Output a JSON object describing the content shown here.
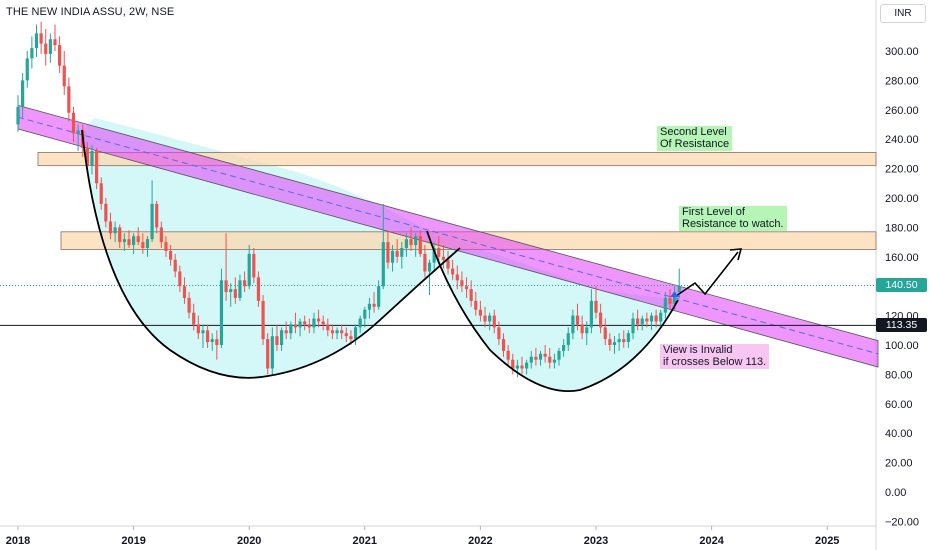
{
  "header": {
    "symbol_line": "THE NEW INDIA ASSU, 2W, NSE",
    "currency": "INR"
  },
  "price_tags": {
    "current_price": "140.50",
    "support_price": "113.35"
  },
  "annotations": {
    "second_resistance": [
      "Second Level",
      "Of Resistance"
    ],
    "first_resistance": [
      "First Level of",
      "Resistance to watch."
    ],
    "invalid_view": [
      "View is Invalid",
      "if crosses Below 113."
    ]
  },
  "colors": {
    "up_candle": "#26a69a",
    "down_candle": "#ef5350",
    "resistance_zone": "#fbd9b0",
    "channel": "#e040fb",
    "cup_fill": "#ccf7f7",
    "current_price_tag": "#26a69a",
    "support_price_tag": "#131722"
  },
  "chart_data": {
    "type": "candlestick",
    "y_axis": {
      "range": [
        -25,
        320
      ],
      "ticks": [
        "300.00",
        "280.00",
        "260.00",
        "240.00",
        "220.00",
        "200.00",
        "180.00",
        "160.00",
        "120.00",
        "100.00",
        "80.00",
        "60.00",
        "40.00",
        "20.00",
        "0.00",
        "−20.00"
      ]
    },
    "x_axis": {
      "ticks": [
        "2018",
        "2019",
        "2020",
        "2021",
        "2022",
        "2023",
        "2024",
        "2025"
      ]
    },
    "resistance_zones": [
      {
        "low": 222,
        "high": 231
      },
      {
        "low": 165,
        "high": 177
      }
    ],
    "support_level": 113.35,
    "current_price": 140.5,
    "trend_channel": {
      "start": {
        "date": "2018-01",
        "upper": 263,
        "lower": 247
      },
      "end": {
        "date": "2025-04",
        "upper": 103,
        "lower": 85
      }
    },
    "candles": [
      [
        2018.0,
        250,
        270,
        245,
        262
      ],
      [
        2018.04,
        262,
        285,
        255,
        280
      ],
      [
        2018.08,
        280,
        300,
        275,
        295
      ],
      [
        2018.12,
        295,
        310,
        288,
        302
      ],
      [
        2018.16,
        302,
        318,
        296,
        312
      ],
      [
        2018.2,
        312,
        320,
        298,
        305
      ],
      [
        2018.24,
        305,
        315,
        290,
        298
      ],
      [
        2018.28,
        298,
        312,
        292,
        308
      ],
      [
        2018.32,
        308,
        318,
        300,
        304
      ],
      [
        2018.36,
        304,
        310,
        285,
        290
      ],
      [
        2018.4,
        290,
        300,
        270,
        276
      ],
      [
        2018.44,
        276,
        282,
        252,
        258
      ],
      [
        2018.48,
        258,
        262,
        238,
        244
      ],
      [
        2018.52,
        244,
        250,
        232,
        246
      ],
      [
        2018.56,
        246,
        250,
        228,
        234
      ],
      [
        2018.6,
        234,
        238,
        218,
        222
      ],
      [
        2018.64,
        222,
        236,
        216,
        232
      ],
      [
        2018.68,
        232,
        234,
        206,
        210
      ],
      [
        2018.72,
        210,
        214,
        192,
        196
      ],
      [
        2018.76,
        196,
        200,
        180,
        184
      ],
      [
        2018.8,
        184,
        190,
        172,
        176
      ],
      [
        2018.84,
        176,
        184,
        170,
        180
      ],
      [
        2018.88,
        180,
        182,
        166,
        170
      ],
      [
        2018.92,
        170,
        176,
        164,
        172
      ],
      [
        2018.96,
        172,
        178,
        166,
        168
      ],
      [
        2019.0,
        168,
        176,
        162,
        174
      ],
      [
        2019.04,
        174,
        180,
        168,
        170
      ],
      [
        2019.08,
        170,
        176,
        162,
        166
      ],
      [
        2019.12,
        166,
        174,
        160,
        172
      ],
      [
        2019.16,
        172,
        212,
        170,
        196
      ],
      [
        2019.2,
        196,
        198,
        176,
        180
      ],
      [
        2019.24,
        180,
        184,
        166,
        170
      ],
      [
        2019.28,
        170,
        174,
        160,
        164
      ],
      [
        2019.32,
        164,
        168,
        154,
        158
      ],
      [
        2019.36,
        158,
        162,
        146,
        150
      ],
      [
        2019.4,
        150,
        154,
        136,
        140
      ],
      [
        2019.44,
        140,
        146,
        128,
        132
      ],
      [
        2019.48,
        132,
        136,
        118,
        122
      ],
      [
        2019.52,
        122,
        128,
        110,
        114
      ],
      [
        2019.56,
        114,
        120,
        104,
        108
      ],
      [
        2019.6,
        108,
        114,
        98,
        110
      ],
      [
        2019.64,
        110,
        114,
        98,
        102
      ],
      [
        2019.68,
        102,
        108,
        96,
        104
      ],
      [
        2019.72,
        104,
        110,
        90,
        100
      ],
      [
        2019.76,
        100,
        152,
        98,
        144
      ],
      [
        2019.8,
        144,
        176,
        130,
        136
      ],
      [
        2019.84,
        136,
        142,
        126,
        138
      ],
      [
        2019.88,
        138,
        146,
        128,
        132
      ],
      [
        2019.92,
        132,
        148,
        130,
        144
      ],
      [
        2019.96,
        144,
        150,
        136,
        140
      ],
      [
        2020.0,
        140,
        168,
        138,
        162
      ],
      [
        2020.04,
        162,
        166,
        142,
        146
      ],
      [
        2020.08,
        146,
        150,
        126,
        130
      ],
      [
        2020.12,
        130,
        134,
        100,
        104
      ],
      [
        2020.16,
        104,
        108,
        80,
        84
      ],
      [
        2020.2,
        84,
        112,
        80,
        106
      ],
      [
        2020.24,
        106,
        114,
        96,
        100
      ],
      [
        2020.28,
        100,
        112,
        96,
        110
      ],
      [
        2020.32,
        110,
        116,
        104,
        108
      ],
      [
        2020.36,
        108,
        116,
        104,
        114
      ],
      [
        2020.4,
        114,
        122,
        108,
        112
      ],
      [
        2020.44,
        112,
        118,
        106,
        116
      ],
      [
        2020.48,
        116,
        120,
        110,
        114
      ],
      [
        2020.52,
        114,
        118,
        108,
        112
      ],
      [
        2020.56,
        112,
        122,
        108,
        118
      ],
      [
        2020.6,
        118,
        124,
        112,
        116
      ],
      [
        2020.64,
        116,
        120,
        110,
        114
      ],
      [
        2020.68,
        114,
        118,
        106,
        110
      ],
      [
        2020.72,
        110,
        114,
        104,
        108
      ],
      [
        2020.76,
        108,
        112,
        104,
        110
      ],
      [
        2020.8,
        110,
        114,
        104,
        108
      ],
      [
        2020.84,
        108,
        112,
        102,
        106
      ],
      [
        2020.88,
        106,
        110,
        100,
        104
      ],
      [
        2020.92,
        104,
        114,
        100,
        112
      ],
      [
        2020.96,
        112,
        120,
        108,
        118
      ],
      [
        2021.0,
        118,
        126,
        112,
        124
      ],
      [
        2021.04,
        124,
        132,
        118,
        128
      ],
      [
        2021.08,
        128,
        136,
        122,
        126
      ],
      [
        2021.12,
        126,
        144,
        124,
        140
      ],
      [
        2021.16,
        140,
        196,
        138,
        170
      ],
      [
        2021.2,
        170,
        178,
        152,
        156
      ],
      [
        2021.24,
        156,
        168,
        150,
        164
      ],
      [
        2021.28,
        164,
        172,
        156,
        160
      ],
      [
        2021.32,
        160,
        170,
        152,
        166
      ],
      [
        2021.36,
        166,
        176,
        160,
        172
      ],
      [
        2021.4,
        172,
        180,
        164,
        168
      ],
      [
        2021.44,
        168,
        176,
        160,
        174
      ],
      [
        2021.48,
        174,
        178,
        160,
        162
      ],
      [
        2021.52,
        162,
        168,
        146,
        150
      ],
      [
        2021.56,
        150,
        158,
        134,
        156
      ],
      [
        2021.6,
        156,
        170,
        150,
        166
      ],
      [
        2021.64,
        166,
        174,
        156,
        160
      ],
      [
        2021.68,
        160,
        168,
        152,
        158
      ],
      [
        2021.72,
        158,
        164,
        148,
        152
      ],
      [
        2021.76,
        152,
        158,
        144,
        148
      ],
      [
        2021.8,
        148,
        154,
        138,
        144
      ],
      [
        2021.84,
        144,
        150,
        136,
        140
      ],
      [
        2021.88,
        140,
        146,
        132,
        138
      ],
      [
        2021.92,
        138,
        144,
        126,
        130
      ],
      [
        2021.96,
        130,
        136,
        120,
        124
      ],
      [
        2022.0,
        124,
        130,
        116,
        120
      ],
      [
        2022.04,
        120,
        126,
        112,
        116
      ],
      [
        2022.08,
        116,
        122,
        110,
        120
      ],
      [
        2022.12,
        120,
        124,
        108,
        112
      ],
      [
        2022.16,
        112,
        116,
        100,
        104
      ],
      [
        2022.2,
        104,
        108,
        92,
        96
      ],
      [
        2022.24,
        96,
        100,
        86,
        90
      ],
      [
        2022.28,
        90,
        94,
        80,
        84
      ],
      [
        2022.32,
        84,
        90,
        78,
        86
      ],
      [
        2022.36,
        86,
        92,
        80,
        84
      ],
      [
        2022.4,
        84,
        90,
        80,
        88
      ],
      [
        2022.44,
        88,
        96,
        84,
        92
      ],
      [
        2022.48,
        92,
        98,
        86,
        90
      ],
      [
        2022.52,
        90,
        96,
        86,
        94
      ],
      [
        2022.56,
        94,
        100,
        88,
        92
      ],
      [
        2022.6,
        92,
        98,
        84,
        88
      ],
      [
        2022.64,
        88,
        94,
        84,
        90
      ],
      [
        2022.68,
        90,
        98,
        86,
        96
      ],
      [
        2022.72,
        96,
        104,
        92,
        100
      ],
      [
        2022.76,
        100,
        112,
        96,
        108
      ],
      [
        2022.8,
        108,
        124,
        104,
        120
      ],
      [
        2022.84,
        120,
        128,
        110,
        114
      ],
      [
        2022.88,
        114,
        120,
        104,
        108
      ],
      [
        2022.92,
        108,
        116,
        100,
        112
      ],
      [
        2022.96,
        112,
        138,
        108,
        130
      ],
      [
        2023.0,
        130,
        140,
        118,
        122
      ],
      [
        2023.04,
        122,
        128,
        108,
        112
      ],
      [
        2023.08,
        112,
        118,
        100,
        104
      ],
      [
        2023.12,
        104,
        108,
        96,
        100
      ],
      [
        2023.16,
        100,
        106,
        94,
        102
      ],
      [
        2023.2,
        102,
        108,
        96,
        104
      ],
      [
        2023.24,
        104,
        110,
        98,
        102
      ],
      [
        2023.28,
        102,
        110,
        98,
        108
      ],
      [
        2023.32,
        108,
        122,
        104,
        118
      ],
      [
        2023.36,
        118,
        124,
        110,
        114
      ],
      [
        2023.4,
        114,
        120,
        110,
        118
      ],
      [
        2023.44,
        118,
        122,
        112,
        116
      ],
      [
        2023.48,
        116,
        122,
        110,
        120
      ],
      [
        2023.52,
        120,
        124,
        112,
        116
      ],
      [
        2023.56,
        116,
        124,
        112,
        122
      ],
      [
        2023.6,
        122,
        136,
        118,
        132
      ],
      [
        2023.64,
        132,
        138,
        124,
        128
      ],
      [
        2023.68,
        128,
        140,
        124,
        136
      ],
      [
        2023.72,
        136,
        152,
        132,
        140
      ]
    ]
  }
}
